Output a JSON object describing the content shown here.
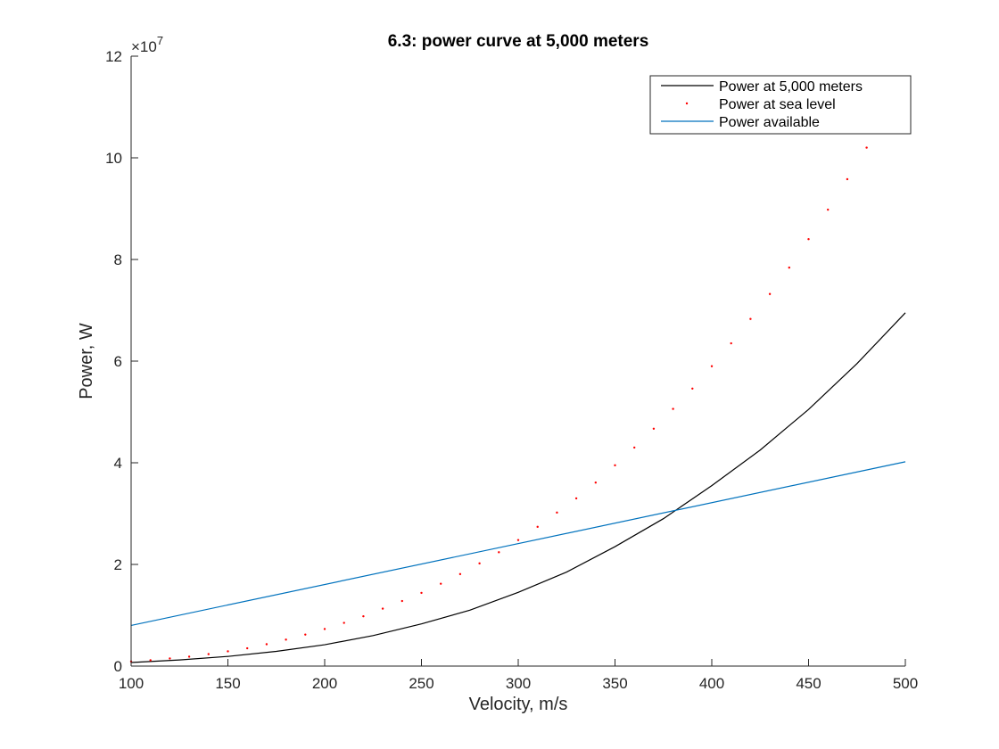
{
  "chart_data": {
    "type": "line",
    "title": "6.3: power curve at 5,000 meters",
    "xlabel": "Velocity, m/s",
    "ylabel": "Power, W",
    "xlim": [
      100,
      500
    ],
    "ylim": [
      0,
      120000000
    ],
    "y_exponent_label": "×10",
    "y_exponent_power": "7",
    "x_ticks": [
      100,
      150,
      200,
      250,
      300,
      350,
      400,
      450,
      500
    ],
    "x_tick_labels": [
      "100",
      "150",
      "200",
      "250",
      "300",
      "350",
      "400",
      "450",
      "500"
    ],
    "y_ticks": [
      0,
      20000000,
      40000000,
      60000000,
      80000000,
      100000000,
      120000000
    ],
    "y_tick_labels": [
      "0",
      "2",
      "4",
      "6",
      "8",
      "10",
      "12"
    ],
    "grid": false,
    "legend_position": "top-right",
    "series": [
      {
        "name": "Power at 5,000 meters",
        "style": "line",
        "color": "#000000",
        "x": [
          100,
          125,
          150,
          175,
          200,
          225,
          250,
          275,
          300,
          325,
          350,
          375,
          400,
          425,
          450,
          475,
          500
        ],
        "y": [
          700000,
          1200000,
          1900000,
          2900000,
          4200000,
          6000000,
          8300000,
          11000000,
          14500000,
          18500000,
          23500000,
          29000000,
          35500000,
          42500000,
          50500000,
          59500000,
          69500000
        ]
      },
      {
        "name": "Power at sea level",
        "style": "dots",
        "color": "#ff0000",
        "x": [
          100,
          110,
          120,
          130,
          140,
          150,
          160,
          170,
          180,
          190,
          200,
          210,
          220,
          230,
          240,
          250,
          260,
          270,
          280,
          290,
          300,
          310,
          320,
          330,
          340,
          350,
          360,
          370,
          380,
          390,
          400,
          410,
          420,
          430,
          440,
          450,
          460,
          470,
          480,
          490,
          500
        ],
        "y": [
          900000,
          1150000,
          1500000,
          1850000,
          2350000,
          2900000,
          3500000,
          4300000,
          5200000,
          6200000,
          7300000,
          8500000,
          9800000,
          11300000,
          12800000,
          14400000,
          16200000,
          18100000,
          20200000,
          22400000,
          24800000,
          27400000,
          30200000,
          33000000,
          36100000,
          39500000,
          43000000,
          46700000,
          50600000,
          54600000,
          59000000,
          63500000,
          68300000,
          73200000,
          78400000,
          84000000,
          89800000,
          95800000,
          102000000,
          108500000,
          115000000
        ]
      },
      {
        "name": "Power available",
        "style": "line",
        "color": "#0072bd",
        "x": [
          100,
          500
        ],
        "y": [
          8000000,
          40200000
        ]
      }
    ]
  }
}
